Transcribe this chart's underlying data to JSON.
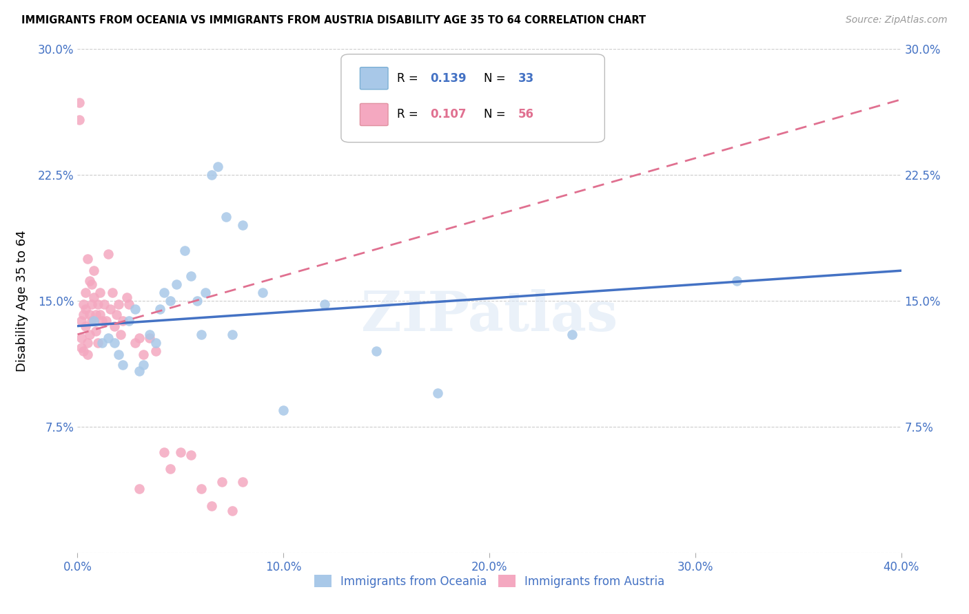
{
  "title": "IMMIGRANTS FROM OCEANIA VS IMMIGRANTS FROM AUSTRIA DISABILITY AGE 35 TO 64 CORRELATION CHART",
  "source": "Source: ZipAtlas.com",
  "ylabel": "Disability Age 35 to 64",
  "xlim": [
    0.0,
    0.4
  ],
  "ylim": [
    0.0,
    0.3
  ],
  "xticks": [
    0.0,
    0.1,
    0.2,
    0.3,
    0.4
  ],
  "xticklabels": [
    "0.0%",
    "10.0%",
    "20.0%",
    "30.0%",
    "40.0%"
  ],
  "yticks": [
    0.0,
    0.075,
    0.15,
    0.225,
    0.3
  ],
  "yticklabels_left": [
    "",
    "7.5%",
    "15.0%",
    "22.5%",
    "30.0%"
  ],
  "yticklabels_right": [
    "",
    "7.5%",
    "15.0%",
    "22.5%",
    "30.0%"
  ],
  "oceania_color": "#a8c8e8",
  "austria_color": "#f4a8c0",
  "oceania_line_color": "#4472c4",
  "austria_line_color": "#e07090",
  "watermark": "ZIPatlas",
  "oceania_x": [
    0.008,
    0.012,
    0.015,
    0.018,
    0.02,
    0.022,
    0.025,
    0.028,
    0.03,
    0.032,
    0.035,
    0.038,
    0.04,
    0.042,
    0.045,
    0.048,
    0.052,
    0.055,
    0.058,
    0.06,
    0.062,
    0.065,
    0.068,
    0.072,
    0.075,
    0.08,
    0.09,
    0.1,
    0.12,
    0.145,
    0.175,
    0.24,
    0.32
  ],
  "oceania_y": [
    0.138,
    0.125,
    0.128,
    0.125,
    0.118,
    0.112,
    0.138,
    0.145,
    0.108,
    0.112,
    0.13,
    0.125,
    0.145,
    0.155,
    0.15,
    0.16,
    0.18,
    0.165,
    0.15,
    0.13,
    0.155,
    0.225,
    0.23,
    0.2,
    0.13,
    0.195,
    0.155,
    0.085,
    0.148,
    0.12,
    0.095,
    0.13,
    0.162
  ],
  "austria_x": [
    0.001,
    0.001,
    0.002,
    0.002,
    0.002,
    0.003,
    0.003,
    0.003,
    0.004,
    0.004,
    0.004,
    0.005,
    0.005,
    0.005,
    0.006,
    0.006,
    0.006,
    0.007,
    0.007,
    0.007,
    0.008,
    0.008,
    0.009,
    0.009,
    0.01,
    0.01,
    0.011,
    0.011,
    0.012,
    0.013,
    0.014,
    0.015,
    0.016,
    0.017,
    0.018,
    0.019,
    0.02,
    0.021,
    0.022,
    0.024,
    0.025,
    0.028,
    0.03,
    0.032,
    0.035,
    0.038,
    0.042,
    0.045,
    0.05,
    0.055,
    0.06,
    0.065,
    0.07,
    0.075,
    0.08,
    0.03
  ],
  "austria_y": [
    0.258,
    0.268,
    0.138,
    0.128,
    0.122,
    0.148,
    0.142,
    0.12,
    0.135,
    0.145,
    0.155,
    0.125,
    0.118,
    0.175,
    0.142,
    0.13,
    0.162,
    0.148,
    0.138,
    0.16,
    0.152,
    0.168,
    0.132,
    0.142,
    0.148,
    0.125,
    0.155,
    0.142,
    0.138,
    0.148,
    0.138,
    0.178,
    0.145,
    0.155,
    0.135,
    0.142,
    0.148,
    0.13,
    0.138,
    0.152,
    0.148,
    0.125,
    0.128,
    0.118,
    0.128,
    0.12,
    0.06,
    0.05,
    0.06,
    0.058,
    0.038,
    0.028,
    0.042,
    0.025,
    0.042,
    0.038
  ],
  "oceania_trend_x": [
    0.0,
    0.4
  ],
  "oceania_trend_y": [
    0.135,
    0.168
  ],
  "austria_trend_x": [
    0.0,
    0.4
  ],
  "austria_trend_y": [
    0.13,
    0.27
  ]
}
